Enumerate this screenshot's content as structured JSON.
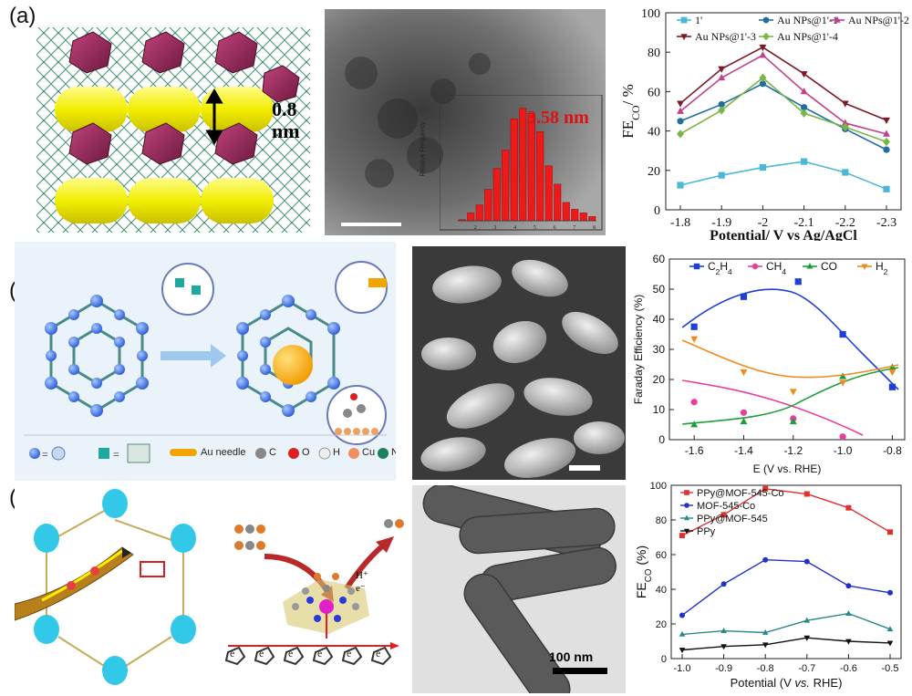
{
  "panel_labels": {
    "a": "(a)",
    "b": "(b)",
    "c": "(c)"
  },
  "a_structure": {
    "dimension_value": "0.8",
    "dimension_unit": "nm"
  },
  "a_tem": {
    "size_label": "3.58 nm",
    "hist_ylabel": "Relative Frequency"
  },
  "b_schematic": {
    "legend": {
      "au_needle": "Au needle",
      "c": "C",
      "o": "O",
      "h": "H",
      "cu": "Cu",
      "n": "N"
    }
  },
  "c_schematic": {
    "h_plus": "H⁺",
    "e_minus": "e⁻",
    "e": "e"
  },
  "c_tem": {
    "scale_label": "100 nm"
  },
  "chart_data": [
    {
      "type": "line",
      "x": [
        "-1.8",
        "-1.9",
        "-2",
        "-2.1",
        "-2.2",
        "-2.3"
      ],
      "xlabel": "Potential/ V vs Ag/AgCl",
      "ylabel_main": "FE",
      "ylabel_sub": "CO",
      "ylabel_tail": "/ %",
      "ylim": [
        0,
        100
      ],
      "yticks": [
        0,
        20,
        40,
        60,
        80,
        100
      ],
      "legend": "top",
      "series": [
        {
          "name": "1'",
          "color": "#4cb8d8",
          "marker": "square",
          "values": [
            12.5,
            17.5,
            21.5,
            24.5,
            19,
            10.5
          ]
        },
        {
          "name": "Au NPs@1'-1",
          "color": "#1f6e9e",
          "marker": "circle",
          "values": [
            45,
            53.5,
            64,
            52,
            41,
            30.5
          ]
        },
        {
          "name": "Au NPs@1'-2",
          "color": "#c2408a",
          "marker": "triangle",
          "values": [
            50,
            67,
            78.5,
            60,
            44,
            38.5
          ]
        },
        {
          "name": "Au NPs@1'-3",
          "color": "#7a1c28",
          "marker": "tri-down",
          "values": [
            54,
            71.5,
            82.5,
            69,
            54,
            45.5
          ]
        },
        {
          "name": "Au NPs@1'-4",
          "color": "#7ab648",
          "marker": "diamond",
          "values": [
            38.5,
            50.5,
            67,
            49,
            42,
            34.5
          ]
        }
      ]
    },
    {
      "type": "scatter",
      "x": [
        -1.6,
        -1.4,
        -1.2,
        -1.0,
        -0.8
      ],
      "xticks": [
        "-1.6",
        "-1.4",
        "-1.2",
        "-1.0",
        "-0.8"
      ],
      "xlabel": "E (V vs. RHE)",
      "ylabel": "Faraday Efficiency (%)",
      "ylim": [
        0,
        60
      ],
      "yticks": [
        0,
        10,
        20,
        30,
        40,
        50,
        60
      ],
      "legend": "top",
      "series": [
        {
          "name": "C2H4",
          "label_main": "C",
          "label_sub1": "2",
          "label_mid": "H",
          "label_sub2": "4",
          "color": "#1e3fd8",
          "marker": "square",
          "points": [
            [
              -1.6,
              37.5
            ],
            [
              -1.4,
              47.5
            ],
            [
              -1.18,
              52.5
            ],
            [
              -1.0,
              35
            ],
            [
              -0.8,
              17.5
            ]
          ]
        },
        {
          "name": "CH4",
          "label_main": "CH",
          "label_sub1": "4",
          "color": "#e83e9c",
          "marker": "circle",
          "points": [
            [
              -1.6,
              12.5
            ],
            [
              -1.4,
              9
            ],
            [
              -1.2,
              7
            ],
            [
              -1.0,
              1
            ]
          ]
        },
        {
          "name": "CO",
          "color": "#1e9e3a",
          "marker": "triangle",
          "points": [
            [
              -1.6,
              5
            ],
            [
              -1.4,
              6
            ],
            [
              -1.2,
              6
            ],
            [
              -1.0,
              21
            ],
            [
              -0.8,
              24
            ]
          ]
        },
        {
          "name": "H2",
          "label_main": "H",
          "label_sub1": "2",
          "color": "#f08a1c",
          "marker": "tri-down",
          "points": [
            [
              -1.6,
              33.5
            ],
            [
              -1.4,
              22.5
            ],
            [
              -1.2,
              16
            ],
            [
              -1.0,
              19
            ],
            [
              -0.8,
              22.5
            ]
          ]
        }
      ]
    },
    {
      "type": "line",
      "x": [
        "-1.0",
        "-0.9",
        "-0.8",
        "-0.7",
        "-0.6",
        "-0.5"
      ],
      "xlabel": "Potential (V vs. RHE)",
      "xlabel_a": "Potential (V ",
      "xlabel_b": "vs.",
      "xlabel_c": " RHE)",
      "ylabel_main": "FE",
      "ylabel_sub": "CO",
      "ylabel_tail": " (%)",
      "ylim": [
        0,
        100
      ],
      "yticks": [
        0,
        20,
        40,
        60,
        80,
        100
      ],
      "legend": "top-left",
      "series": [
        {
          "name": "PPy@MOF-545-Co",
          "color": "#e03030",
          "marker": "square",
          "values": [
            71,
            83,
            98,
            95,
            87,
            73
          ]
        },
        {
          "name": "MOF-545-Co",
          "color": "#2030c8",
          "marker": "circle",
          "values": [
            25,
            43,
            57,
            56,
            42,
            38
          ]
        },
        {
          "name": "PPy@MOF-545",
          "color": "#2a8a8a",
          "marker": "triangle",
          "values": [
            14,
            16,
            15,
            22,
            26,
            17
          ]
        },
        {
          "name": "PPy",
          "color": "#111111",
          "marker": "tri-down",
          "values": [
            5,
            7,
            8,
            12,
            10,
            9
          ]
        }
      ]
    }
  ]
}
